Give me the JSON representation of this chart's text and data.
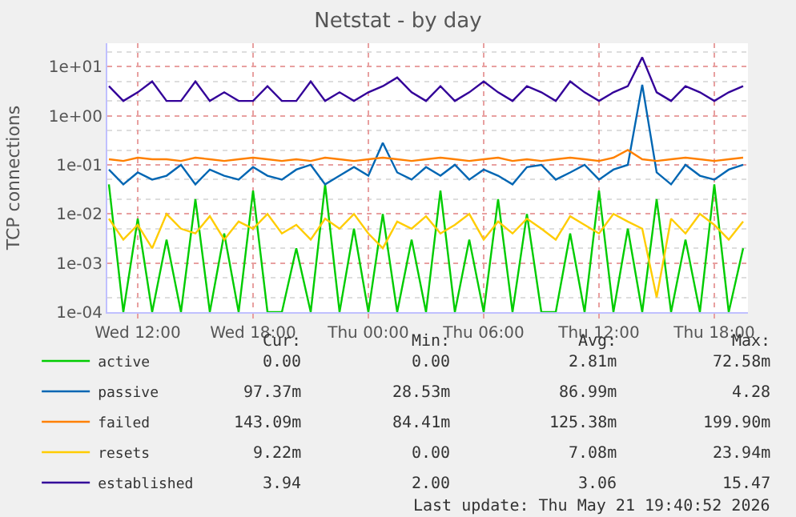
{
  "chart_data": {
    "type": "line",
    "title": "Netstat - by day",
    "ylabel": "TCP connections",
    "log": true,
    "grid": true,
    "legend": "bottom left",
    "line_style": "solid",
    "marker": "none",
    "x": [
      "2026-05-20T10:30",
      "2026-05-20T11:15",
      "2026-05-20T12:00",
      "2026-05-20T12:45",
      "2026-05-20T13:30",
      "2026-05-20T14:15",
      "2026-05-20T15:00",
      "2026-05-20T15:45",
      "2026-05-20T16:30",
      "2026-05-20T17:15",
      "2026-05-20T18:00",
      "2026-05-20T18:45",
      "2026-05-20T19:30",
      "2026-05-20T20:15",
      "2026-05-20T21:00",
      "2026-05-20T21:45",
      "2026-05-20T22:30",
      "2026-05-20T23:15",
      "2026-05-21T00:00",
      "2026-05-21T00:45",
      "2026-05-21T01:30",
      "2026-05-21T02:15",
      "2026-05-21T03:00",
      "2026-05-21T03:45",
      "2026-05-21T04:30",
      "2026-05-21T05:15",
      "2026-05-21T06:00",
      "2026-05-21T06:45",
      "2026-05-21T07:30",
      "2026-05-21T08:15",
      "2026-05-21T09:00",
      "2026-05-21T09:45",
      "2026-05-21T10:30",
      "2026-05-21T11:15",
      "2026-05-21T12:00",
      "2026-05-21T12:45",
      "2026-05-21T13:30",
      "2026-05-21T14:15",
      "2026-05-21T15:00",
      "2026-05-21T15:45",
      "2026-05-21T16:30",
      "2026-05-21T17:15",
      "2026-05-21T18:00",
      "2026-05-21T18:45",
      "2026-05-21T19:30"
    ],
    "xlim": [
      "2026-05-20T10:25",
      "2026-05-21T19:45"
    ],
    "xticks": [
      {
        "value": "2026-05-20T12:00",
        "label": "Wed 12:00"
      },
      {
        "value": "2026-05-20T18:00",
        "label": "Wed 18:00"
      },
      {
        "value": "2026-05-21T00:00",
        "label": "Thu 00:00"
      },
      {
        "value": "2026-05-21T06:00",
        "label": "Thu 06:00"
      },
      {
        "value": "2026-05-21T12:00",
        "label": "Thu 12:00"
      },
      {
        "value": "2026-05-21T18:00",
        "label": "Thu 18:00"
      }
    ],
    "ylim": [
      0.0001,
      30
    ],
    "yticks": [
      {
        "value": 0.0001,
        "label": "1e-04"
      },
      {
        "value": 0.001,
        "label": "1e-03"
      },
      {
        "value": 0.01,
        "label": "1e-02"
      },
      {
        "value": 0.1,
        "label": "1e-01"
      },
      {
        "value": 1,
        "label": "1e+00"
      },
      {
        "value": 10,
        "label": "1e+01"
      }
    ],
    "series": [
      {
        "name": "active",
        "color": "#00cc00",
        "values": [
          0.04,
          0.0001,
          0.008,
          0.0001,
          0.003,
          0.0001,
          0.02,
          0.0001,
          0.004,
          0.0001,
          0.03,
          0.0001,
          0.0001,
          0.002,
          0.0001,
          0.04,
          0.0001,
          0.005,
          0.0001,
          0.01,
          0.0001,
          0.003,
          0.0001,
          0.03,
          0.0001,
          0.003,
          0.0001,
          0.02,
          0.0001,
          0.01,
          0.0001,
          0.0001,
          0.004,
          0.0001,
          0.03,
          0.0001,
          0.005,
          0.0001,
          0.02,
          0.0001,
          0.003,
          0.0001,
          0.04,
          0.0001,
          0.002
        ]
      },
      {
        "name": "passive",
        "color": "#0066b3",
        "values": [
          0.08,
          0.04,
          0.07,
          0.05,
          0.06,
          0.1,
          0.04,
          0.08,
          0.06,
          0.05,
          0.09,
          0.06,
          0.05,
          0.08,
          0.1,
          0.04,
          0.06,
          0.09,
          0.06,
          0.28,
          0.07,
          0.05,
          0.09,
          0.06,
          0.1,
          0.05,
          0.08,
          0.06,
          0.04,
          0.09,
          0.1,
          0.05,
          0.07,
          0.1,
          0.05,
          0.08,
          0.1,
          4.28,
          0.07,
          0.04,
          0.1,
          0.06,
          0.05,
          0.08,
          0.1
        ]
      },
      {
        "name": "failed",
        "color": "#ff8000",
        "values": [
          0.13,
          0.12,
          0.14,
          0.13,
          0.13,
          0.12,
          0.14,
          0.13,
          0.12,
          0.13,
          0.14,
          0.13,
          0.12,
          0.13,
          0.12,
          0.14,
          0.13,
          0.12,
          0.13,
          0.14,
          0.13,
          0.12,
          0.13,
          0.14,
          0.13,
          0.12,
          0.13,
          0.14,
          0.12,
          0.13,
          0.12,
          0.13,
          0.14,
          0.13,
          0.12,
          0.14,
          0.2,
          0.13,
          0.12,
          0.13,
          0.14,
          0.13,
          0.12,
          0.13,
          0.14
        ]
      },
      {
        "name": "resets",
        "color": "#ffcc00",
        "values": [
          0.008,
          0.003,
          0.006,
          0.002,
          0.01,
          0.005,
          0.004,
          0.009,
          0.003,
          0.007,
          0.005,
          0.01,
          0.004,
          0.006,
          0.003,
          0.008,
          0.005,
          0.01,
          0.004,
          0.002,
          0.007,
          0.005,
          0.009,
          0.004,
          0.006,
          0.01,
          0.003,
          0.007,
          0.004,
          0.008,
          0.005,
          0.003,
          0.009,
          0.006,
          0.004,
          0.01,
          0.007,
          0.005,
          0.0002,
          0.008,
          0.004,
          0.01,
          0.006,
          0.003,
          0.007
        ]
      },
      {
        "name": "established",
        "color": "#330099",
        "values": [
          4,
          2,
          3,
          5,
          2,
          2,
          5,
          2,
          3,
          2,
          2,
          4,
          2,
          2,
          5,
          2,
          3,
          2,
          3,
          4,
          6,
          3,
          2,
          4,
          2,
          3,
          5,
          3,
          2,
          4,
          3,
          2,
          5,
          3,
          2,
          3,
          4,
          15.47,
          3,
          2,
          4,
          3,
          2,
          3,
          4
        ]
      }
    ],
    "annotations": [
      "Cur:",
      "Min:",
      "Avg:",
      "Max:",
      "0.00",
      "0.00",
      "2.81m",
      "72.58m",
      "97.37m",
      "28.53m",
      "86.99m",
      "4.28",
      "143.09m",
      "84.41m",
      "125.38m",
      "199.90m",
      "9.22m",
      "0.00",
      "7.08m",
      "23.94m",
      "3.94",
      "2.00",
      "3.06",
      "15.47",
      "Last update: Thu May 21 19:40:52 2026"
    ]
  }
}
